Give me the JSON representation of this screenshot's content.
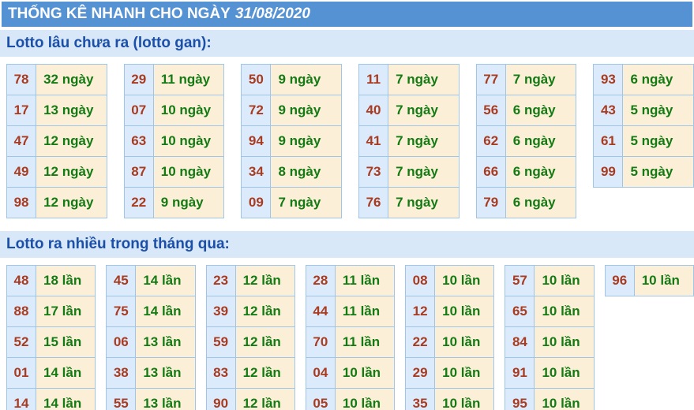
{
  "title": {
    "prefix": "THỐNG KÊ NHANH CHO NGÀY",
    "date": "31/08/2020"
  },
  "colors": {
    "titlebar-bg": "#5592d4",
    "band-bg": "#d8e8f8",
    "band-text": "#1b4fa8",
    "cell-border": "#9fc5e8",
    "num-bg": "#dcebfc",
    "num-text": "#a93b20",
    "val-bg": "#fbf0d7",
    "val-text": "#147a14"
  },
  "sections": [
    {
      "heading": "Lotto lâu chưa ra (lotto gan):",
      "unit": "ngày",
      "columns": [
        [
          {
            "n": "78",
            "v": "32 ngày"
          },
          {
            "n": "17",
            "v": "13 ngày"
          },
          {
            "n": "47",
            "v": "12 ngày"
          },
          {
            "n": "49",
            "v": "12 ngày"
          },
          {
            "n": "98",
            "v": "12 ngày"
          }
        ],
        [
          {
            "n": "29",
            "v": "11 ngày"
          },
          {
            "n": "07",
            "v": "10 ngày"
          },
          {
            "n": "63",
            "v": "10 ngày"
          },
          {
            "n": "87",
            "v": "10 ngày"
          },
          {
            "n": "22",
            "v": "9 ngày"
          }
        ],
        [
          {
            "n": "50",
            "v": "9 ngày"
          },
          {
            "n": "72",
            "v": "9 ngày"
          },
          {
            "n": "94",
            "v": "9 ngày"
          },
          {
            "n": "34",
            "v": "8 ngày"
          },
          {
            "n": "09",
            "v": "7 ngày"
          }
        ],
        [
          {
            "n": "11",
            "v": "7 ngày"
          },
          {
            "n": "40",
            "v": "7 ngày"
          },
          {
            "n": "41",
            "v": "7 ngày"
          },
          {
            "n": "73",
            "v": "7 ngày"
          },
          {
            "n": "76",
            "v": "7 ngày"
          }
        ],
        [
          {
            "n": "77",
            "v": "7 ngày"
          },
          {
            "n": "56",
            "v": "6 ngày"
          },
          {
            "n": "62",
            "v": "6 ngày"
          },
          {
            "n": "66",
            "v": "6 ngày"
          },
          {
            "n": "79",
            "v": "6 ngày"
          }
        ],
        [
          {
            "n": "93",
            "v": "6 ngày"
          },
          {
            "n": "43",
            "v": "5 ngày"
          },
          {
            "n": "61",
            "v": "5 ngày"
          },
          {
            "n": "99",
            "v": "5 ngày"
          }
        ]
      ]
    },
    {
      "heading": "Lotto ra nhiều trong tháng qua:",
      "unit": "lần",
      "columns": [
        [
          {
            "n": "48",
            "v": "18 lần"
          },
          {
            "n": "88",
            "v": "17 lần"
          },
          {
            "n": "52",
            "v": "15 lần"
          },
          {
            "n": "01",
            "v": "14 lần"
          },
          {
            "n": "14",
            "v": "14 lần"
          }
        ],
        [
          {
            "n": "45",
            "v": "14 lần"
          },
          {
            "n": "75",
            "v": "14 lần"
          },
          {
            "n": "06",
            "v": "13 lần"
          },
          {
            "n": "38",
            "v": "13 lần"
          },
          {
            "n": "55",
            "v": "13 lần"
          }
        ],
        [
          {
            "n": "23",
            "v": "12 lần"
          },
          {
            "n": "39",
            "v": "12 lần"
          },
          {
            "n": "59",
            "v": "12 lần"
          },
          {
            "n": "83",
            "v": "12 lần"
          },
          {
            "n": "90",
            "v": "12 lần"
          }
        ],
        [
          {
            "n": "28",
            "v": "11 lần"
          },
          {
            "n": "44",
            "v": "11 lần"
          },
          {
            "n": "70",
            "v": "11 lần"
          },
          {
            "n": "04",
            "v": "10 lần"
          },
          {
            "n": "05",
            "v": "10 lần"
          }
        ],
        [
          {
            "n": "08",
            "v": "10 lần"
          },
          {
            "n": "12",
            "v": "10 lần"
          },
          {
            "n": "22",
            "v": "10 lần"
          },
          {
            "n": "29",
            "v": "10 lần"
          },
          {
            "n": "35",
            "v": "10 lần"
          }
        ],
        [
          {
            "n": "57",
            "v": "10 lần"
          },
          {
            "n": "65",
            "v": "10 lần"
          },
          {
            "n": "84",
            "v": "10 lần"
          },
          {
            "n": "91",
            "v": "10 lần"
          },
          {
            "n": "95",
            "v": "10 lần"
          }
        ],
        [
          {
            "n": "96",
            "v": "10 lần"
          }
        ]
      ]
    }
  ]
}
